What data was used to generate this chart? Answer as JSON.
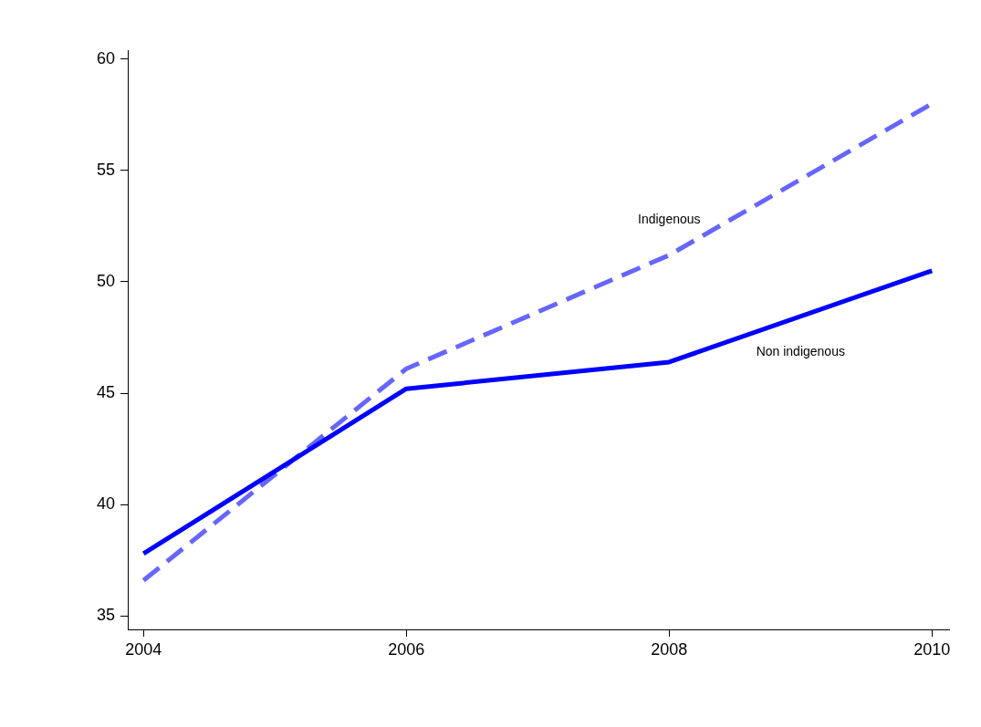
{
  "chart_data": {
    "type": "line",
    "x": [
      2004,
      2006,
      2008,
      2010
    ],
    "series": [
      {
        "name": "Non indigenous",
        "color": "#0000ff",
        "line_style": "solid",
        "values": [
          37.8,
          45.2,
          46.4,
          50.5
        ]
      },
      {
        "name": "Indigenous",
        "color": "#6666ff",
        "line_style": "dashed",
        "values": [
          36.6,
          46.1,
          51.2,
          58.0
        ]
      }
    ],
    "xlim": [
      2003.88,
      2010.13
    ],
    "xticks": [
      2004,
      2006,
      2008,
      2010
    ],
    "ylim": [
      34.4,
      60.4
    ],
    "yticks": [
      35,
      40,
      45,
      50,
      55,
      60
    ],
    "grid": false,
    "legend": false,
    "marker": "none"
  }
}
